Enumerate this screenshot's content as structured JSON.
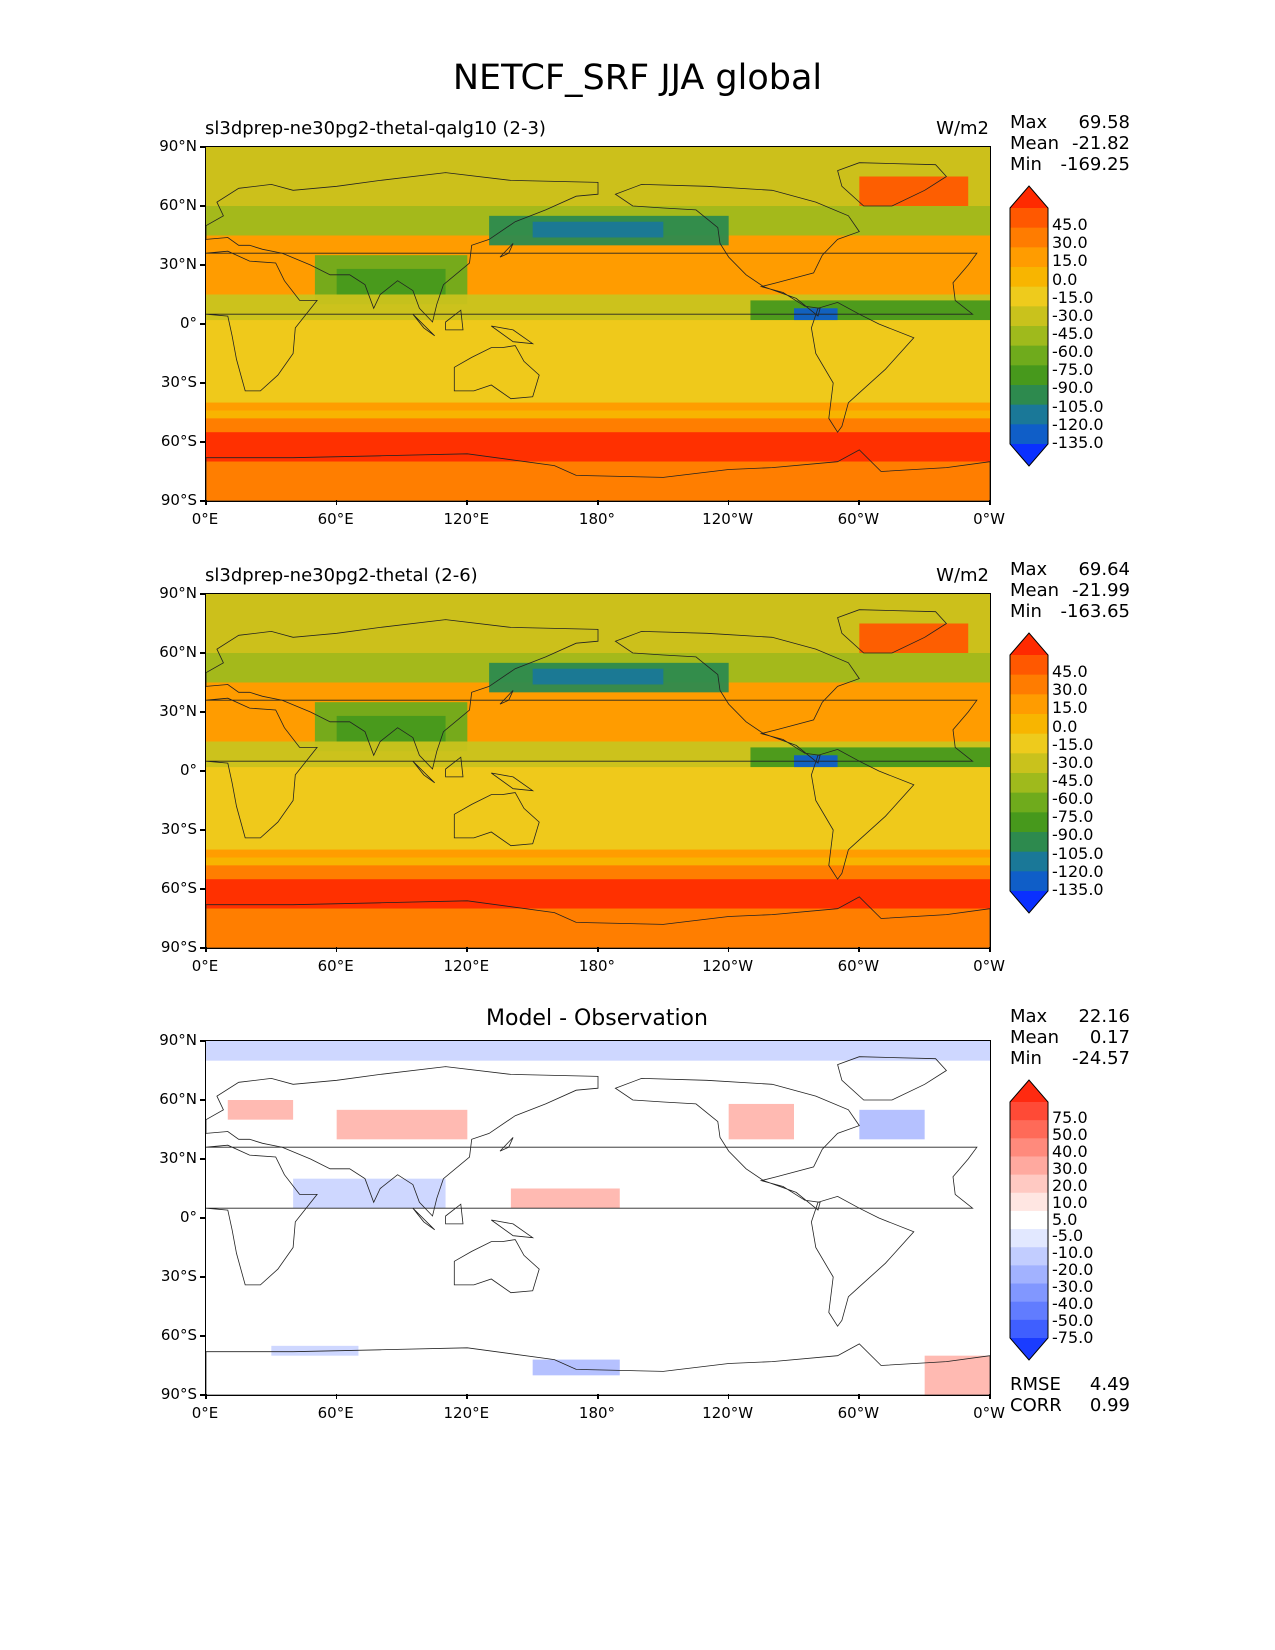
{
  "title": "NETCF_SRF JJA global",
  "x_tick_labels": [
    "0°E",
    "60°E",
    "120°E",
    "180°",
    "120°W",
    "60°W",
    "0°W"
  ],
  "y_tick_labels": [
    "90°N",
    "60°N",
    "30°N",
    "0°",
    "30°S",
    "60°S",
    "90°S"
  ],
  "panels": [
    {
      "title": "sl3dprep-ne30pg2-thetal-qalg10 (2-3)",
      "units": "W/m2",
      "stats": {
        "max_label": "Max",
        "max": "69.58",
        "mean_label": "Mean",
        "mean": "-21.82",
        "min_label": "Min",
        "min": "-169.25"
      },
      "colorbar": {
        "levels": [
          "45.0",
          "30.0",
          "15.0",
          "0.0",
          "-15.0",
          "-30.0",
          "-45.0",
          "-60.0",
          "-75.0",
          "-90.0",
          "-105.0",
          "-120.0",
          "-135.0"
        ],
        "colors": [
          "#ff2a00",
          "#ff5800",
          "#ff7c00",
          "#ff9c00",
          "#f8b500",
          "#eecb1c",
          "#c9c21c",
          "#9fba1c",
          "#6fab1c",
          "#47991c",
          "#2d8a4e",
          "#1a7898",
          "#0f5ec8",
          "#0a30ff"
        ]
      }
    },
    {
      "title": "sl3dprep-ne30pg2-thetal (2-6)",
      "units": "W/m2",
      "stats": {
        "max_label": "Max",
        "max": "69.64",
        "mean_label": "Mean",
        "mean": "-21.99",
        "min_label": "Min",
        "min": "-163.65"
      },
      "colorbar": {
        "levels": [
          "45.0",
          "30.0",
          "15.0",
          "0.0",
          "-15.0",
          "-30.0",
          "-45.0",
          "-60.0",
          "-75.0",
          "-90.0",
          "-105.0",
          "-120.0",
          "-135.0"
        ],
        "colors": [
          "#ff2a00",
          "#ff5800",
          "#ff7c00",
          "#ff9c00",
          "#f8b500",
          "#eecb1c",
          "#c9c21c",
          "#9fba1c",
          "#6fab1c",
          "#47991c",
          "#2d8a4e",
          "#1a7898",
          "#0f5ec8",
          "#0a30ff"
        ]
      }
    },
    {
      "title": "Model - Observation",
      "units": "",
      "stats": {
        "max_label": "Max",
        "max": "22.16",
        "mean_label": "Mean",
        "mean": "0.17",
        "min_label": "Min",
        "min": "-24.57"
      },
      "colorbar": {
        "levels": [
          "75.0",
          "50.0",
          "40.0",
          "30.0",
          "20.0",
          "10.0",
          "5.0",
          "-5.0",
          "-10.0",
          "-20.0",
          "-30.0",
          "-40.0",
          "-50.0",
          "-75.0"
        ],
        "colors": [
          "#ff2a10",
          "#ff4a36",
          "#ff6a58",
          "#ff8a7c",
          "#ffa99f",
          "#ffc9c2",
          "#ffe6e2",
          "#ffffff",
          "#e2e8ff",
          "#c2cdff",
          "#a2b2ff",
          "#8197ff",
          "#617cff",
          "#3f5fff",
          "#1a3cff"
        ]
      },
      "rmse_label": "RMSE",
      "rmse": "4.49",
      "corr_label": "CORR",
      "corr": "0.99"
    }
  ]
}
